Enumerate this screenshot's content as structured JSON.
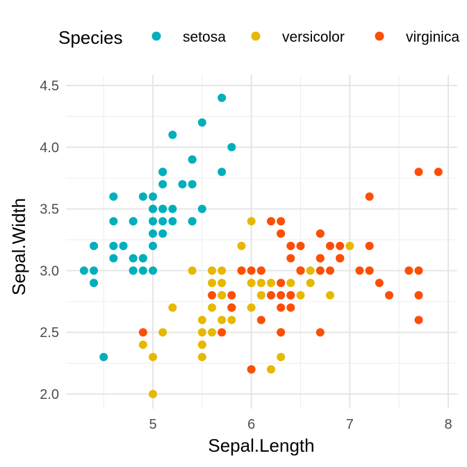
{
  "chart_data": {
    "type": "scatter",
    "xlabel": "Sepal.Length",
    "ylabel": "Sepal.Width",
    "xlim": [
      4.2,
      8.0
    ],
    "ylim": [
      1.95,
      4.5
    ],
    "x_ticks": [
      5,
      6,
      7,
      8
    ],
    "x_tick_labels": [
      "5",
      "6",
      "7",
      "8"
    ],
    "y_ticks": [
      2.0,
      2.5,
      3.0,
      3.5,
      4.0,
      4.5
    ],
    "y_tick_labels": [
      "2.0",
      "2.5",
      "3.0",
      "3.5",
      "4.0",
      "4.5"
    ],
    "grid": true,
    "legend": {
      "title": "Species",
      "position": "top"
    },
    "series": [
      {
        "name": "setosa",
        "color": "#00AFBB",
        "points": [
          [
            5.1,
            3.5
          ],
          [
            4.9,
            3.0
          ],
          [
            4.7,
            3.2
          ],
          [
            4.6,
            3.1
          ],
          [
            5.0,
            3.6
          ],
          [
            5.4,
            3.9
          ],
          [
            4.6,
            3.4
          ],
          [
            5.0,
            3.4
          ],
          [
            4.4,
            2.9
          ],
          [
            4.9,
            3.1
          ],
          [
            5.4,
            3.7
          ],
          [
            4.8,
            3.4
          ],
          [
            4.8,
            3.0
          ],
          [
            4.3,
            3.0
          ],
          [
            5.8,
            4.0
          ],
          [
            5.7,
            4.4
          ],
          [
            5.4,
            3.9
          ],
          [
            5.1,
            3.5
          ],
          [
            5.7,
            3.8
          ],
          [
            5.1,
            3.8
          ],
          [
            5.4,
            3.4
          ],
          [
            5.1,
            3.7
          ],
          [
            4.6,
            3.6
          ],
          [
            5.1,
            3.3
          ],
          [
            4.8,
            3.4
          ],
          [
            5.0,
            3.0
          ],
          [
            5.0,
            3.4
          ],
          [
            5.2,
            3.5
          ],
          [
            5.2,
            3.4
          ],
          [
            4.7,
            3.2
          ],
          [
            4.8,
            3.1
          ],
          [
            5.4,
            3.4
          ],
          [
            5.2,
            4.1
          ],
          [
            5.5,
            4.2
          ],
          [
            4.9,
            3.1
          ],
          [
            5.0,
            3.2
          ],
          [
            5.5,
            3.5
          ],
          [
            4.9,
            3.6
          ],
          [
            4.4,
            3.0
          ],
          [
            5.1,
            3.4
          ],
          [
            5.0,
            3.5
          ],
          [
            4.5,
            2.3
          ],
          [
            4.4,
            3.2
          ],
          [
            5.0,
            3.5
          ],
          [
            5.1,
            3.8
          ],
          [
            4.8,
            3.0
          ],
          [
            5.1,
            3.8
          ],
          [
            4.6,
            3.2
          ],
          [
            5.3,
            3.7
          ],
          [
            5.0,
            3.3
          ]
        ]
      },
      {
        "name": "versicolor",
        "color": "#E7B800",
        "points": [
          [
            7.0,
            3.2
          ],
          [
            6.4,
            3.2
          ],
          [
            6.9,
            3.1
          ],
          [
            5.5,
            2.3
          ],
          [
            6.5,
            2.8
          ],
          [
            5.7,
            2.8
          ],
          [
            6.3,
            3.3
          ],
          [
            4.9,
            2.4
          ],
          [
            6.6,
            2.9
          ],
          [
            5.2,
            2.7
          ],
          [
            5.0,
            2.0
          ],
          [
            5.9,
            3.0
          ],
          [
            6.0,
            2.2
          ],
          [
            6.1,
            2.9
          ],
          [
            5.6,
            2.9
          ],
          [
            6.7,
            3.1
          ],
          [
            5.6,
            3.0
          ],
          [
            5.8,
            2.7
          ],
          [
            6.2,
            2.2
          ],
          [
            5.6,
            2.5
          ],
          [
            5.9,
            3.2
          ],
          [
            6.1,
            2.8
          ],
          [
            6.3,
            2.5
          ],
          [
            6.1,
            2.8
          ],
          [
            6.4,
            2.9
          ],
          [
            6.6,
            3.0
          ],
          [
            6.8,
            2.8
          ],
          [
            6.7,
            3.0
          ],
          [
            6.0,
            2.9
          ],
          [
            5.7,
            2.6
          ],
          [
            5.5,
            2.4
          ],
          [
            5.5,
            2.4
          ],
          [
            5.8,
            2.7
          ],
          [
            6.0,
            2.7
          ],
          [
            5.4,
            3.0
          ],
          [
            6.0,
            3.4
          ],
          [
            6.7,
            3.1
          ],
          [
            6.3,
            2.3
          ],
          [
            5.6,
            3.0
          ],
          [
            5.5,
            2.5
          ],
          [
            5.5,
            2.6
          ],
          [
            6.1,
            3.0
          ],
          [
            5.8,
            2.6
          ],
          [
            5.0,
            2.3
          ],
          [
            5.6,
            2.7
          ],
          [
            5.7,
            3.0
          ],
          [
            5.7,
            2.9
          ],
          [
            6.2,
            2.9
          ],
          [
            5.1,
            2.5
          ],
          [
            5.7,
            2.8
          ]
        ]
      },
      {
        "name": "virginica",
        "color": "#FC4E07",
        "points": [
          [
            6.3,
            3.3
          ],
          [
            5.8,
            2.7
          ],
          [
            7.1,
            3.0
          ],
          [
            6.3,
            2.9
          ],
          [
            6.5,
            3.0
          ],
          [
            7.6,
            3.0
          ],
          [
            4.9,
            2.5
          ],
          [
            7.3,
            2.9
          ],
          [
            6.7,
            2.5
          ],
          [
            7.2,
            3.6
          ],
          [
            6.5,
            3.2
          ],
          [
            6.4,
            2.7
          ],
          [
            6.8,
            3.0
          ],
          [
            5.7,
            2.5
          ],
          [
            5.8,
            2.8
          ],
          [
            6.4,
            3.2
          ],
          [
            6.5,
            3.0
          ],
          [
            7.7,
            3.8
          ],
          [
            7.7,
            2.6
          ],
          [
            6.0,
            2.2
          ],
          [
            6.9,
            3.2
          ],
          [
            5.6,
            2.8
          ],
          [
            7.7,
            2.8
          ],
          [
            6.3,
            2.7
          ],
          [
            6.7,
            3.3
          ],
          [
            7.2,
            3.2
          ],
          [
            6.2,
            2.8
          ],
          [
            6.1,
            3.0
          ],
          [
            6.4,
            2.8
          ],
          [
            7.2,
            3.0
          ],
          [
            7.4,
            2.8
          ],
          [
            7.9,
            3.8
          ],
          [
            6.4,
            2.8
          ],
          [
            6.3,
            2.8
          ],
          [
            6.1,
            2.6
          ],
          [
            7.7,
            3.0
          ],
          [
            6.3,
            3.4
          ],
          [
            6.4,
            3.1
          ],
          [
            6.0,
            3.0
          ],
          [
            6.9,
            3.1
          ],
          [
            6.7,
            3.1
          ],
          [
            6.9,
            3.1
          ],
          [
            5.8,
            2.7
          ],
          [
            6.8,
            3.2
          ],
          [
            6.7,
            3.3
          ],
          [
            6.7,
            3.0
          ],
          [
            6.3,
            2.5
          ],
          [
            6.5,
            3.0
          ],
          [
            6.2,
            3.4
          ],
          [
            5.9,
            3.0
          ]
        ]
      }
    ]
  }
}
